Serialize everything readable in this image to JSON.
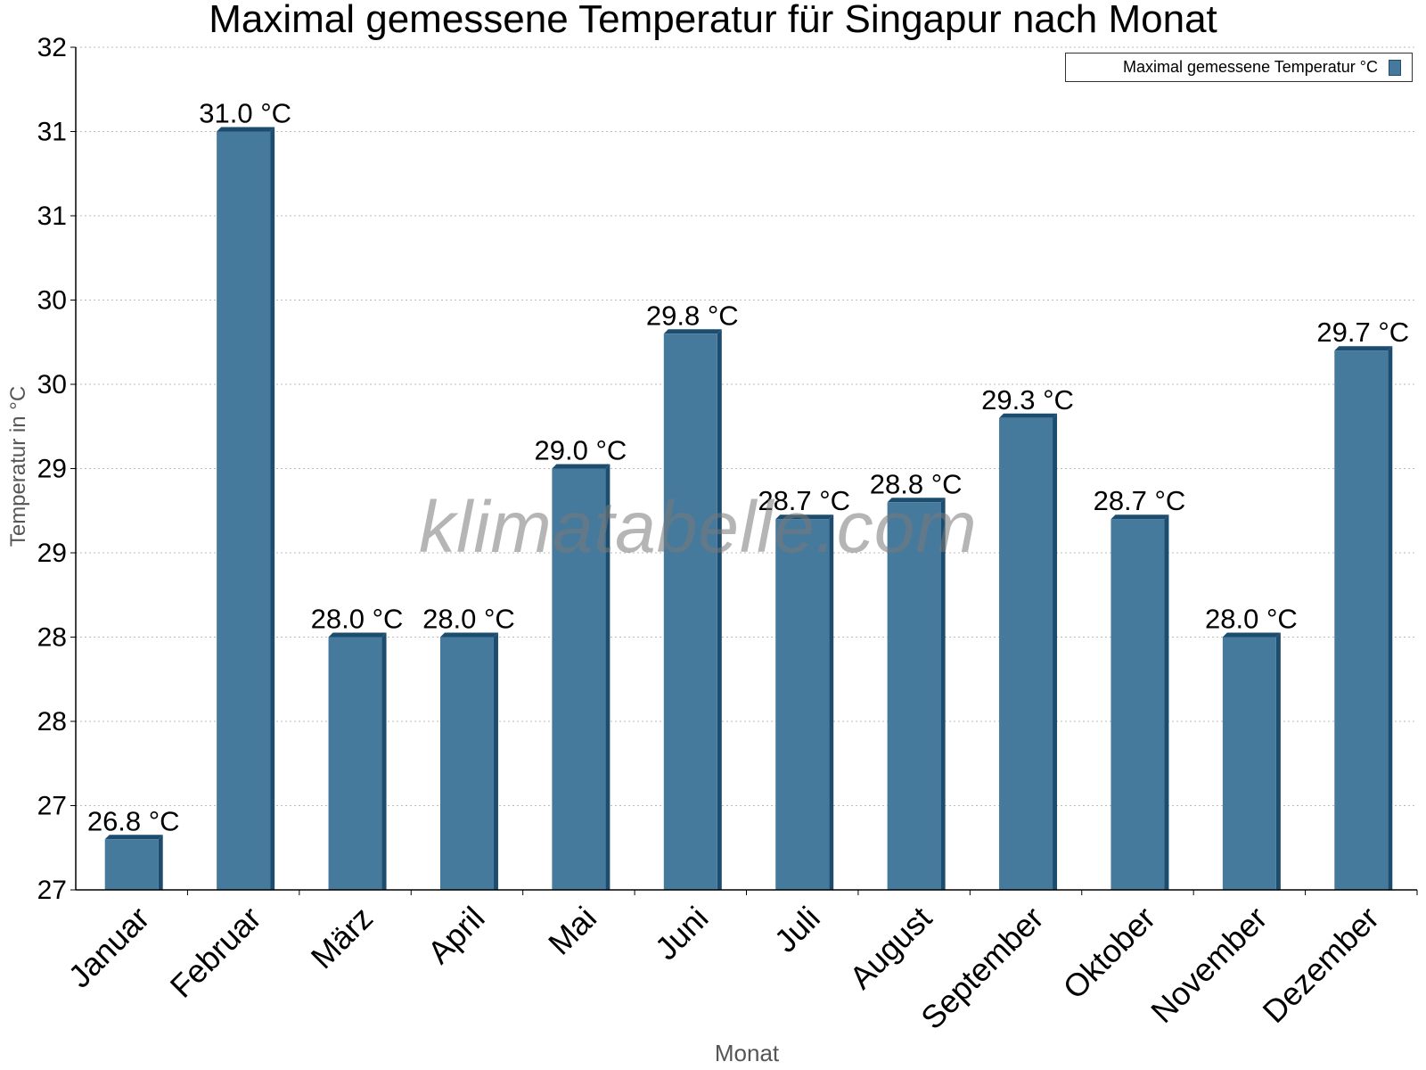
{
  "chart_data": {
    "type": "bar",
    "title": "Maximal gemessene Temperatur für Singapur nach Monat",
    "xlabel": "Monat",
    "ylabel": "Temperatur in °C",
    "categories": [
      "Januar",
      "Februar",
      "März",
      "April",
      "Mai",
      "Juni",
      "Juli",
      "August",
      "September",
      "Oktober",
      "November",
      "Dezember"
    ],
    "series": [
      {
        "name": "Maximal gemessene Temperatur °C",
        "values": [
          26.8,
          31.0,
          28.0,
          28.0,
          29.0,
          29.8,
          28.7,
          28.8,
          29.3,
          28.7,
          28.0,
          29.7
        ],
        "labels": [
          "26.8 °C",
          "31.0 °C",
          "28.0 °C",
          "28.0 °C",
          "29.0 °C",
          "29.8 °C",
          "28.7 °C",
          "28.8 °C",
          "29.3 °C",
          "28.7 °C",
          "28.0 °C",
          "29.7 °C"
        ],
        "color": "#467a9d"
      }
    ],
    "ylim": [
      26.5,
      31.5
    ],
    "yticks": [
      26.5,
      27.0,
      27.5,
      28.0,
      28.5,
      29.0,
      29.5,
      30.0,
      30.5,
      31.0,
      31.5
    ],
    "ytick_labels": [
      "27",
      "27",
      "28",
      "28",
      "29",
      "29",
      "30",
      "30",
      "31",
      "31",
      "32"
    ],
    "grid": true,
    "legend": "top-right"
  },
  "colors": {
    "bar": "#467a9d",
    "bar_dark": "#1c4d6e",
    "grid": "#bbbbbb",
    "axis": "#000000"
  },
  "watermark": "klimatabelle.com"
}
